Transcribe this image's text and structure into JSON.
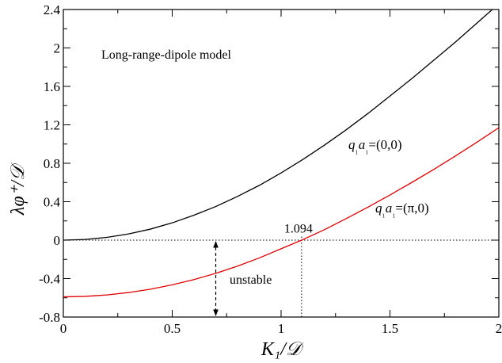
{
  "chart_data": {
    "type": "line",
    "title": "",
    "xlabel": "K₁/𝒟",
    "ylabel": "λφ⁺/𝒟",
    "xlim": [
      0,
      2
    ],
    "ylim": [
      -0.8,
      2.4
    ],
    "x_ticks": [
      0,
      0.5,
      1,
      1.5,
      2
    ],
    "x_tick_labels": [
      "0",
      "0.5",
      "1",
      "1.5",
      "2"
    ],
    "y_ticks": [
      -0.8,
      -0.4,
      0,
      0.4,
      0.8,
      1.2,
      1.6,
      2,
      2.4
    ],
    "y_tick_labels": [
      "-0.8",
      "-0.4",
      "0",
      "0.4",
      "0.8",
      "1.2",
      "1.6",
      "2",
      "2.4"
    ],
    "grid": false,
    "series": [
      {
        "label_text": "q₁a₁=(0,0)",
        "color": "#000000",
        "x": [
          0,
          0.1,
          0.2,
          0.3,
          0.4,
          0.5,
          0.6,
          0.7,
          0.8,
          0.9,
          1.0,
          1.1,
          1.2,
          1.3,
          1.4,
          1.5,
          1.6,
          1.7,
          1.8,
          1.9,
          2.0
        ],
        "y": [
          0,
          0.007,
          0.029,
          0.065,
          0.115,
          0.18,
          0.26,
          0.35,
          0.455,
          0.57,
          0.7,
          0.84,
          0.99,
          1.15,
          1.32,
          1.5,
          1.68,
          1.87,
          2.06,
          2.26,
          2.46
        ]
      },
      {
        "label_text": "q₁a₁=(π,0)",
        "color": "#e00000",
        "x": [
          0,
          0.1,
          0.2,
          0.3,
          0.4,
          0.5,
          0.6,
          0.7,
          0.8,
          0.9,
          1.0,
          1.094,
          1.2,
          1.3,
          1.4,
          1.5,
          1.6,
          1.7,
          1.8,
          1.9,
          2.0
        ],
        "y": [
          -0.59,
          -0.585,
          -0.57,
          -0.545,
          -0.51,
          -0.465,
          -0.41,
          -0.345,
          -0.27,
          -0.185,
          -0.09,
          0,
          0.11,
          0.225,
          0.345,
          0.47,
          0.6,
          0.735,
          0.875,
          1.02,
          1.17
        ]
      }
    ],
    "reference_line": {
      "y": 0,
      "style": "dotted"
    },
    "crossing": {
      "x": 1.094,
      "label": "1.094"
    },
    "arrow": {
      "x": 0.7,
      "y_from": 0,
      "y_to": -0.8,
      "label": "unstable"
    },
    "annotation_text": "Long-range-dipole model"
  }
}
